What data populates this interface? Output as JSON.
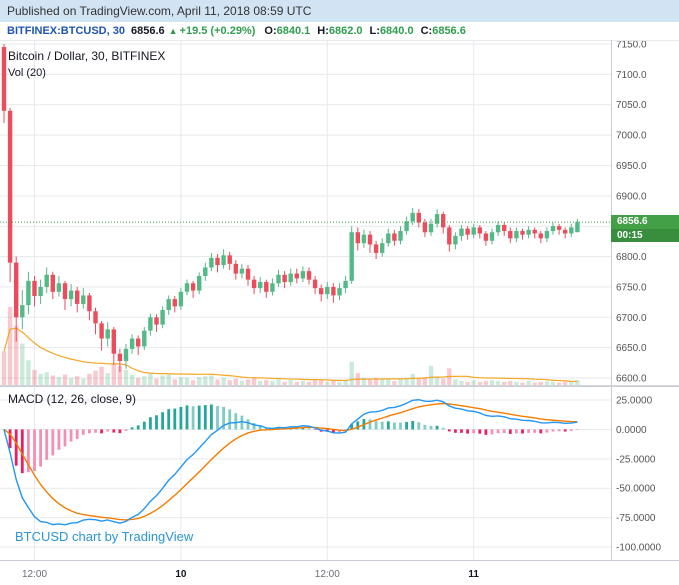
{
  "published_bar": {
    "text": "Published on TradingView.com, April 11, 2018 08:59 UTC"
  },
  "symbol_bar": {
    "symbol": "BITFINEX:BTCUSD, 30",
    "last": "6856.6",
    "arrow": "▲",
    "change": "+19.5 (+0.29%)",
    "ohlc": [
      {
        "label": "O:",
        "value": "6840.1"
      },
      {
        "label": "H:",
        "value": "6862.0"
      },
      {
        "label": "L:",
        "value": "6840.0"
      },
      {
        "label": "C:",
        "value": "6856.6"
      }
    ]
  },
  "main_chart": {
    "legend": "Bitcoin / Dollar, 30, BITFINEX",
    "vol_legend": "Vol (20)",
    "price_label": "6856.6",
    "countdown": "00:15"
  },
  "macd_panel": {
    "legend": "MACD (12, 26, close, 9)"
  },
  "watermark": {
    "text": "BTCUSD chart by TradingView"
  },
  "colors": {
    "published_bg": "#d2e3f3",
    "published_text": "#333333",
    "symbol_blue": "#1e53b5",
    "green_text": "#2f9e4e",
    "up": "#53b987",
    "down": "#eb4d5c",
    "vol_ma": "#f5a623",
    "macd_line": "#2196f3",
    "signal_line": "#f57c00",
    "hist_neg": "#e91e63",
    "hist_neg_light": "#f48fb1",
    "hist_pos": "#26a69a",
    "hist_pos_light": "#80cbc4",
    "grid": "#e7e9ed",
    "border": "#c9ccd4",
    "axis_text": "#555555",
    "time_text": "#6a6d78",
    "time_text_major": "#131722",
    "badge_green": "#43a047",
    "countdown_green": "#388e3c",
    "price_line": "#3f9e4d",
    "watermark": "#2b95d6"
  },
  "chart_data": [
    {
      "type": "candlestick",
      "title": "Bitcoin / Dollar, 30, BITFINEX",
      "symbol": "BITFINEX:BTCUSD",
      "interval": "30",
      "volume_ma_length": 20,
      "grid": true,
      "y_axis_side": "right",
      "y_ticks": [
        7150,
        7100,
        7050,
        7000,
        6950,
        6900,
        6850,
        6800,
        6750,
        6700,
        6650,
        6600
      ],
      "ylim": [
        6588.5,
        7156.6
      ],
      "last_price": 6856.6,
      "x_axis_labels": [
        {
          "label": "12:00",
          "index": 5,
          "major": false
        },
        {
          "label": "10",
          "index": 29,
          "major": true
        },
        {
          "label": "12:00",
          "index": 53,
          "major": false
        },
        {
          "label": "11",
          "index": 77,
          "major": true
        }
      ],
      "candles_format": [
        "open",
        "high",
        "low",
        "close",
        "volume"
      ],
      "candles": [
        [
          7145,
          7150,
          7020,
          7040,
          4200
        ],
        [
          7040,
          7045,
          6758,
          6790,
          9800
        ],
        [
          6790,
          6800,
          6660,
          6700,
          7400
        ],
        [
          6700,
          6745,
          6680,
          6720,
          5200
        ],
        [
          6720,
          6775,
          6705,
          6760,
          3100
        ],
        [
          6760,
          6768,
          6718,
          6735,
          1900
        ],
        [
          6735,
          6762,
          6722,
          6750,
          1400
        ],
        [
          6750,
          6782,
          6740,
          6770,
          1600
        ],
        [
          6770,
          6775,
          6730,
          6742,
          1200
        ],
        [
          6742,
          6768,
          6734,
          6756,
          1000
        ],
        [
          6756,
          6760,
          6712,
          6730,
          1300
        ],
        [
          6730,
          6755,
          6718,
          6744,
          900
        ],
        [
          6744,
          6750,
          6708,
          6722,
          1100
        ],
        [
          6722,
          6748,
          6714,
          6736,
          800
        ],
        [
          6736,
          6740,
          6695,
          6710,
          1400
        ],
        [
          6710,
          6716,
          6672,
          6690,
          1800
        ],
        [
          6690,
          6694,
          6645,
          6665,
          2300
        ],
        [
          6665,
          6692,
          6652,
          6680,
          1500
        ],
        [
          6680,
          6684,
          6622,
          6640,
          2600
        ],
        [
          6640,
          6648,
          6610,
          6628,
          2400
        ],
        [
          6628,
          6656,
          6615,
          6648,
          1900
        ],
        [
          6648,
          6672,
          6640,
          6665,
          1300
        ],
        [
          6665,
          6670,
          6638,
          6652,
          900
        ],
        [
          6652,
          6684,
          6646,
          6678,
          1100
        ],
        [
          6678,
          6706,
          6670,
          6700,
          1400
        ],
        [
          6700,
          6705,
          6676,
          6688,
          800
        ],
        [
          6688,
          6718,
          6682,
          6712,
          1200
        ],
        [
          6712,
          6736,
          6704,
          6730,
          1300
        ],
        [
          6730,
          6735,
          6708,
          6718,
          700
        ],
        [
          6718,
          6748,
          6712,
          6742,
          1000
        ],
        [
          6742,
          6762,
          6736,
          6756,
          900
        ],
        [
          6756,
          6760,
          6732,
          6744,
          600
        ],
        [
          6744,
          6774,
          6738,
          6768,
          1000
        ],
        [
          6768,
          6790,
          6760,
          6782,
          1100
        ],
        [
          6782,
          6806,
          6776,
          6798,
          1200
        ],
        [
          6798,
          6804,
          6774,
          6786,
          700
        ],
        [
          6786,
          6812,
          6780,
          6802,
          900
        ],
        [
          6802,
          6808,
          6778,
          6788,
          600
        ],
        [
          6788,
          6794,
          6762,
          6772,
          800
        ],
        [
          6772,
          6788,
          6764,
          6780,
          500
        ],
        [
          6780,
          6786,
          6752,
          6762,
          700
        ],
        [
          6762,
          6768,
          6738,
          6748,
          900
        ],
        [
          6748,
          6766,
          6740,
          6758,
          500
        ],
        [
          6758,
          6762,
          6732,
          6742,
          600
        ],
        [
          6742,
          6764,
          6736,
          6756,
          500
        ],
        [
          6756,
          6778,
          6750,
          6770,
          700
        ],
        [
          6770,
          6776,
          6748,
          6758,
          400
        ],
        [
          6758,
          6780,
          6752,
          6772,
          600
        ],
        [
          6772,
          6780,
          6756,
          6764,
          400
        ],
        [
          6764,
          6784,
          6758,
          6776,
          500
        ],
        [
          6776,
          6782,
          6754,
          6762,
          400
        ],
        [
          6762,
          6768,
          6738,
          6748,
          600
        ],
        [
          6748,
          6754,
          6726,
          6738,
          700
        ],
        [
          6738,
          6758,
          6730,
          6750,
          400
        ],
        [
          6750,
          6756,
          6724,
          6736,
          600
        ],
        [
          6736,
          6756,
          6728,
          6748,
          400
        ],
        [
          6748,
          6768,
          6740,
          6760,
          600
        ],
        [
          6760,
          6850,
          6755,
          6840,
          2900
        ],
        [
          6840,
          6848,
          6810,
          6822,
          1500
        ],
        [
          6822,
          6844,
          6814,
          6836,
          900
        ],
        [
          6836,
          6842,
          6806,
          6820,
          800
        ],
        [
          6820,
          6826,
          6796,
          6806,
          900
        ],
        [
          6806,
          6830,
          6800,
          6822,
          700
        ],
        [
          6822,
          6846,
          6816,
          6838,
          800
        ],
        [
          6838,
          6844,
          6818,
          6826,
          500
        ],
        [
          6826,
          6850,
          6820,
          6842,
          700
        ],
        [
          6842,
          6866,
          6836,
          6858,
          900
        ],
        [
          6858,
          6880,
          6852,
          6872,
          1400
        ],
        [
          6872,
          6878,
          6848,
          6856,
          800
        ],
        [
          6856,
          6862,
          6832,
          6840,
          1000
        ],
        [
          6840,
          6862,
          6834,
          6854,
          2400
        ],
        [
          6854,
          6878,
          6848,
          6870,
          900
        ],
        [
          6870,
          6874,
          6838,
          6848,
          800
        ],
        [
          6848,
          6852,
          6808,
          6820,
          2100
        ],
        [
          6820,
          6840,
          6812,
          6834,
          700
        ],
        [
          6834,
          6852,
          6826,
          6846,
          500
        ],
        [
          6846,
          6850,
          6828,
          6836,
          400
        ],
        [
          6836,
          6854,
          6830,
          6848,
          600
        ],
        [
          6848,
          6852,
          6830,
          6838,
          400
        ],
        [
          6838,
          6842,
          6818,
          6826,
          500
        ],
        [
          6826,
          6846,
          6820,
          6840,
          600
        ],
        [
          6840,
          6858,
          6834,
          6852,
          500
        ],
        [
          6852,
          6856,
          6834,
          6842,
          400
        ],
        [
          6842,
          6848,
          6822,
          6830,
          500
        ],
        [
          6830,
          6848,
          6824,
          6842,
          400
        ],
        [
          6842,
          6846,
          6828,
          6836,
          300
        ],
        [
          6836,
          6850,
          6830,
          6844,
          500
        ],
        [
          6844,
          6848,
          6830,
          6838,
          300
        ],
        [
          6838,
          6842,
          6822,
          6830,
          400
        ],
        [
          6830,
          6848,
          6824,
          6842,
          500
        ],
        [
          6842,
          6856,
          6836,
          6850,
          400
        ],
        [
          6850,
          6854,
          6836,
          6844,
          300
        ],
        [
          6844,
          6848,
          6830,
          6838,
          400
        ],
        [
          6838,
          6854,
          6832,
          6848,
          500
        ],
        [
          6840.1,
          6862.0,
          6840.0,
          6856.6,
          600
        ]
      ]
    },
    {
      "type": "line",
      "title": "MACD (12, 26, close, 9)",
      "params": {
        "fast": 12,
        "slow": 26,
        "source": "close",
        "signal": 9
      },
      "derived_from": "candles",
      "series": [
        "macd",
        "signal",
        "histogram"
      ],
      "y_ticks": [
        25,
        0,
        -25,
        -50,
        -75,
        -100
      ],
      "ylim": [
        -110.2,
        36.1
      ]
    }
  ]
}
